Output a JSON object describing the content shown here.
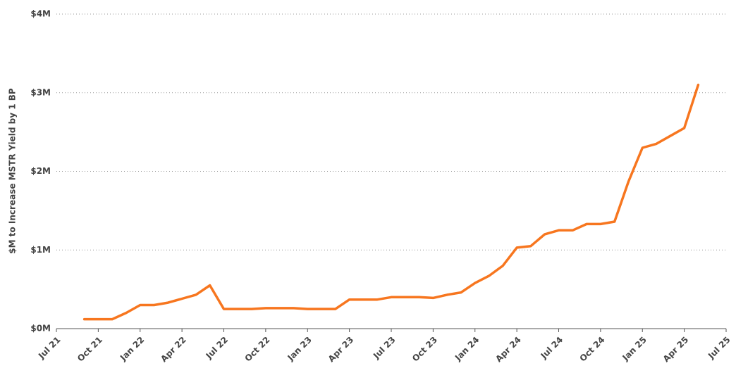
{
  "chart_data": {
    "type": "line",
    "y_label": "$M to Increase MSTR Yield by 1 BP",
    "x": [
      "2021-09",
      "2021-10",
      "2021-11",
      "2021-12",
      "2022-01",
      "2022-02",
      "2022-03",
      "2022-04",
      "2022-05",
      "2022-06",
      "2022-07",
      "2022-08",
      "2022-09",
      "2022-10",
      "2022-11",
      "2022-12",
      "2023-01",
      "2023-02",
      "2023-03",
      "2023-04",
      "2023-05",
      "2023-06",
      "2023-07",
      "2023-08",
      "2023-09",
      "2023-10",
      "2023-11",
      "2023-12",
      "2024-01",
      "2024-02",
      "2024-03",
      "2024-04",
      "2024-05",
      "2024-06",
      "2024-07",
      "2024-08",
      "2024-09",
      "2024-10",
      "2024-11",
      "2024-12",
      "2025-01",
      "2025-02",
      "2025-03",
      "2025-04",
      "2025-05"
    ],
    "series": [
      {
        "name": "$M to Increase MSTR Yield by 1 BP",
        "color": "#f7761f",
        "values": [
          0.12,
          0.12,
          0.12,
          0.2,
          0.3,
          0.3,
          0.33,
          0.38,
          0.43,
          0.55,
          0.25,
          0.25,
          0.25,
          0.26,
          0.26,
          0.26,
          0.25,
          0.25,
          0.25,
          0.37,
          0.37,
          0.37,
          0.4,
          0.4,
          0.4,
          0.39,
          0.43,
          0.46,
          0.58,
          0.67,
          0.8,
          1.03,
          1.05,
          1.2,
          1.25,
          1.25,
          1.33,
          1.33,
          1.36,
          1.87,
          2.3,
          2.35,
          2.45,
          2.55,
          3.1
        ]
      }
    ],
    "xlim": [
      "2021-07",
      "2025-07"
    ],
    "xticks": [
      {
        "value": "2021-07",
        "label": "Jul 21"
      },
      {
        "value": "2021-10",
        "label": "Oct 21"
      },
      {
        "value": "2022-01",
        "label": "Jan 22"
      },
      {
        "value": "2022-04",
        "label": "Apr 22"
      },
      {
        "value": "2022-07",
        "label": "Jul 22"
      },
      {
        "value": "2022-10",
        "label": "Oct 22"
      },
      {
        "value": "2023-01",
        "label": "Jan 23"
      },
      {
        "value": "2023-04",
        "label": "Apr 23"
      },
      {
        "value": "2023-07",
        "label": "Jul 23"
      },
      {
        "value": "2023-10",
        "label": "Oct 23"
      },
      {
        "value": "2024-01",
        "label": "Jan 24"
      },
      {
        "value": "2024-04",
        "label": "Apr 24"
      },
      {
        "value": "2024-07",
        "label": "Jul 24"
      },
      {
        "value": "2024-10",
        "label": "Oct 24"
      },
      {
        "value": "2025-01",
        "label": "Jan 25"
      },
      {
        "value": "2025-04",
        "label": "Apr 25"
      },
      {
        "value": "2025-07",
        "label": "Jul 25"
      }
    ],
    "ylim": [
      0,
      4
    ],
    "yticks": [
      {
        "value": 0,
        "label": "$0M"
      },
      {
        "value": 1,
        "label": "$1M"
      },
      {
        "value": 2,
        "label": "$2M"
      },
      {
        "value": 3,
        "label": "$3M"
      },
      {
        "value": 4,
        "label": "$4M"
      }
    ],
    "grid": true
  }
}
